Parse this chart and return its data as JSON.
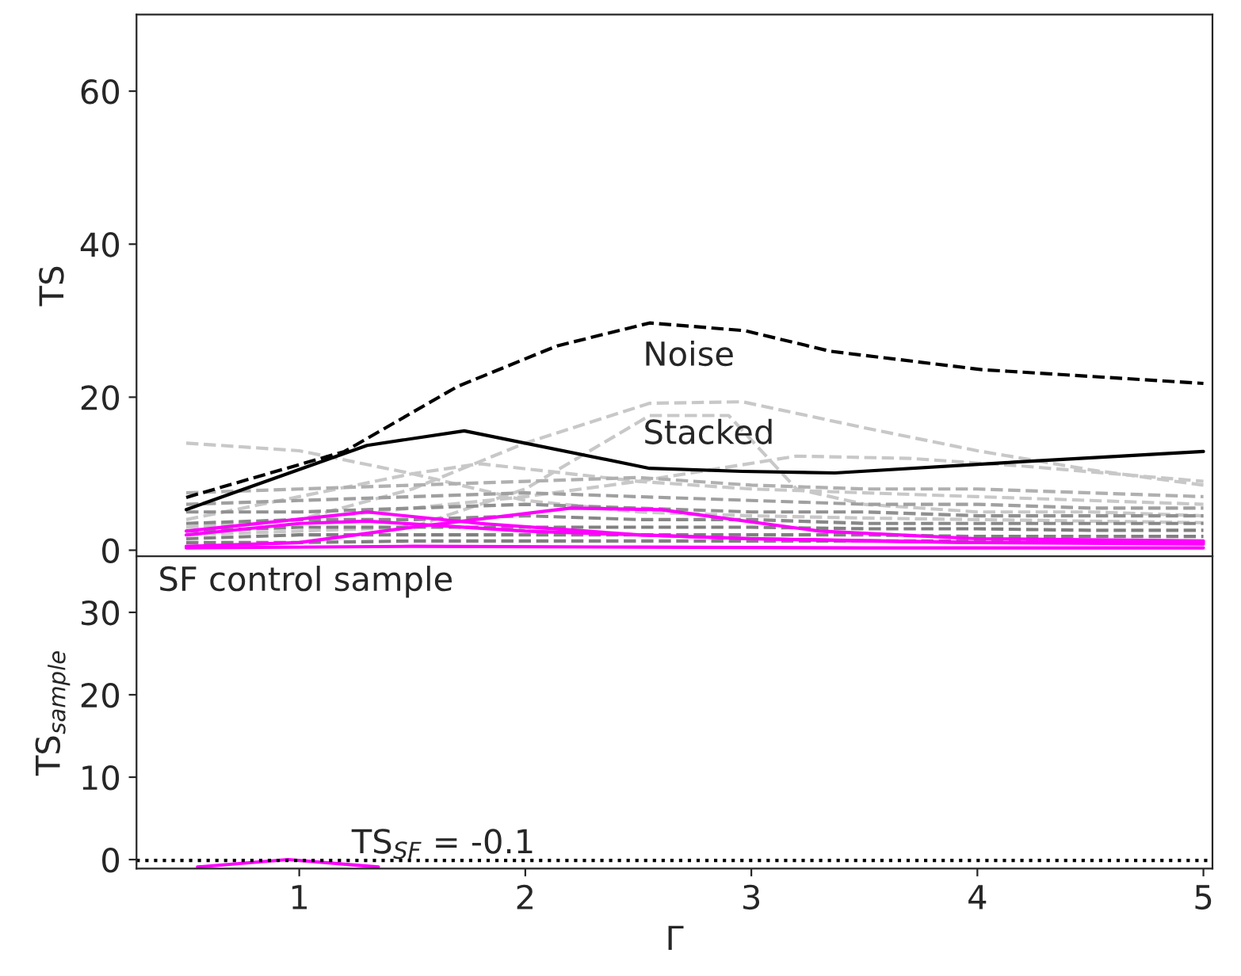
{
  "chart_data": [
    {
      "type": "line",
      "ylabel": "TS",
      "xlim": [
        0.28,
        5.04
      ],
      "ylim": [
        -0.8,
        70
      ],
      "yticks": [
        0,
        20,
        40,
        60
      ],
      "tick_labels": "y",
      "series": [
        {
          "color": "#c8c8c8",
          "line_style": "dashed",
          "x": [
            0.5,
            1.0,
            1.5,
            2.0,
            2.5,
            3.0,
            3.5,
            4.0,
            4.5,
            5.0
          ],
          "values": [
            14,
            13,
            10,
            6.5,
            5,
            4.5,
            4.2,
            4,
            3.8,
            3.6
          ]
        },
        {
          "color": "#c8c8c8",
          "line_style": "dashed",
          "x": [
            0.5,
            1.0,
            1.5,
            2.0,
            2.55,
            2.96,
            3.5,
            4.0,
            4.5,
            5.0
          ],
          "values": [
            3,
            4,
            8,
            14,
            19.2,
            19.4,
            16,
            13,
            10.5,
            8.5
          ]
        },
        {
          "color": "#c8c8c8",
          "line_style": "dashed",
          "x": [
            0.5,
            1.0,
            1.5,
            2.0,
            2.55,
            2.9,
            3.2,
            3.5,
            4.0,
            4.5,
            5.0
          ],
          "values": [
            2,
            2.5,
            3,
            8,
            17.6,
            17.6,
            8,
            6,
            5,
            5,
            4.5
          ]
        },
        {
          "color": "#c8c8c8",
          "line_style": "dashed",
          "x": [
            0.5,
            1.0,
            1.5,
            1.8,
            2.5,
            3.0,
            3.5,
            4.0,
            4.5,
            5.0
          ],
          "values": [
            4,
            7,
            10,
            11.3,
            9,
            8,
            7.5,
            7,
            6.5,
            6
          ]
        },
        {
          "color": "#c8c8c8",
          "line_style": "dashed",
          "x": [
            0.5,
            1.0,
            1.5,
            2.0,
            2.5,
            3.2,
            3.7,
            4.2,
            4.6,
            5.0
          ],
          "values": [
            3,
            4,
            5.5,
            7,
            9,
            12.3,
            12,
            11,
            10,
            9
          ]
        },
        {
          "color": "#b0b0b0",
          "line_style": "dashed",
          "x": [
            0.5,
            1.0,
            1.5,
            2.0,
            2.5,
            3.0,
            3.5,
            4.0,
            4.5,
            5.0
          ],
          "values": [
            7.5,
            8,
            8.5,
            9,
            9.5,
            8.5,
            8,
            8,
            7.5,
            7
          ]
        },
        {
          "color": "#a0a0a0",
          "line_style": "dashed",
          "x": [
            0.5,
            1.0,
            1.5,
            2.0,
            2.5,
            3.0,
            3.5,
            4.0,
            4.5,
            5.0
          ],
          "values": [
            6,
            6.5,
            7,
            7.5,
            7,
            6.5,
            6,
            6,
            5.5,
            5.5
          ]
        },
        {
          "color": "#909090",
          "line_style": "dashed",
          "x": [
            0.5,
            1.0,
            1.5,
            2.0,
            2.5,
            3.0,
            3.5,
            4.0,
            4.5,
            5.0
          ],
          "values": [
            5,
            5,
            5.5,
            6,
            5.5,
            5,
            5,
            4.5,
            4.5,
            4.5
          ]
        },
        {
          "color": "#888888",
          "line_style": "dashed",
          "x": [
            0.5,
            1.0,
            1.5,
            2.0,
            2.5,
            3.0,
            3.5,
            4.0,
            4.5,
            5.0
          ],
          "values": [
            3.5,
            4,
            4,
            4.5,
            4,
            4,
            3.5,
            3.5,
            3.5,
            3.5
          ]
        },
        {
          "color": "#808080",
          "line_style": "dashed",
          "x": [
            0.5,
            1.0,
            1.5,
            2.0,
            2.5,
            3.0,
            3.5,
            4.0,
            4.5,
            5.0
          ],
          "values": [
            2.5,
            3,
            3,
            3,
            3,
            3,
            2.8,
            2.8,
            2.6,
            2.6
          ]
        },
        {
          "color": "#808080",
          "line_style": "dashed",
          "x": [
            0.5,
            1.0,
            1.5,
            2.0,
            2.5,
            3.0,
            3.5,
            4.0,
            4.5,
            5.0
          ],
          "values": [
            1.5,
            2,
            2,
            2,
            2,
            2,
            2,
            1.8,
            1.8,
            1.8
          ]
        },
        {
          "color": "#808080",
          "line_style": "dashed",
          "x": [
            0.5,
            1.0,
            1.5,
            2.0,
            2.5,
            3.0,
            3.5,
            4.0,
            4.5,
            5.0
          ],
          "values": [
            1,
            1,
            1.2,
            1.2,
            1.2,
            1.2,
            1.2,
            1.2,
            1,
            1
          ]
        },
        {
          "color": "#ff00ff",
          "line_style": "solid",
          "x": [
            0.5,
            1.3,
            1.8,
            2.5,
            3.0,
            3.5,
            4.0,
            5.0
          ],
          "values": [
            2.5,
            5,
            3.5,
            2,
            1.5,
            1.2,
            1,
            1
          ]
        },
        {
          "color": "#ff00ff",
          "line_style": "solid",
          "x": [
            0.5,
            1.0,
            1.5,
            2.2,
            2.6,
            3.3,
            4.0,
            5.0
          ],
          "values": [
            0.5,
            1,
            3,
            5.5,
            5.3,
            2.5,
            1.5,
            1.2
          ]
        },
        {
          "color": "#ff00ff",
          "line_style": "solid",
          "x": [
            0.5,
            1.0,
            1.3,
            2.0,
            3.0,
            4.0,
            5.0
          ],
          "values": [
            2,
            3.5,
            3.8,
            2.5,
            1.5,
            1,
            0.8
          ]
        },
        {
          "color": "#ff00ff",
          "line_style": "solid",
          "x": [
            0.5,
            1.5,
            2.5,
            3.5,
            5.0
          ],
          "values": [
            0.3,
            0.5,
            0.4,
            0.3,
            0.3
          ]
        },
        {
          "name": "Noise",
          "color": "#000000",
          "line_style": "dashed",
          "x": [
            0.5,
            1.2,
            1.7,
            2.14,
            2.55,
            2.97,
            3.35,
            4.02,
            5.0
          ],
          "values": [
            6.9,
            12.9,
            21.4,
            26.7,
            29.7,
            28.7,
            26,
            23.6,
            21.8
          ]
        },
        {
          "name": "Stacked",
          "color": "#000000",
          "line_style": "solid",
          "x": [
            0.5,
            1.3,
            1.73,
            2.55,
            2.96,
            3.37,
            4.16,
            5.0
          ],
          "values": [
            5.3,
            13.7,
            15.6,
            10.7,
            10.3,
            10.1,
            11.5,
            12.9
          ]
        }
      ]
    },
    {
      "type": "line",
      "ylabel": "TS$_{sample}$",
      "xlabel": "Γ",
      "xlim": [
        0.28,
        5.04
      ],
      "ylim": [
        -1.1,
        36.8
      ],
      "yticks": [
        0,
        10,
        20,
        30
      ],
      "xticks": [
        1,
        2,
        3,
        4,
        5
      ],
      "annotations": [
        "SF control sample"
      ],
      "ref_lines": [
        {
          "axis": "y",
          "value": -0.1,
          "label": "TS$_{SF}$ = -0.1",
          "color": "#000000",
          "line_style": "dotted"
        }
      ],
      "series": [
        {
          "color": "#ff00ff",
          "line_style": "solid",
          "x": [
            0.55,
            0.95,
            1.35
          ],
          "values": [
            -0.9,
            0,
            -0.9
          ]
        }
      ]
    }
  ]
}
